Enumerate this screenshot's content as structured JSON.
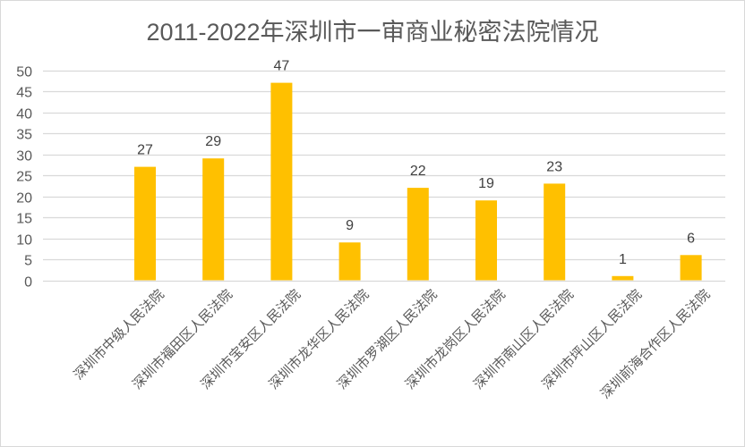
{
  "chart_data": {
    "type": "bar",
    "title": "2011-2022年深圳市一审商业秘密法院情况",
    "xlabel": "",
    "ylabel": "",
    "ylim": [
      0,
      50
    ],
    "yticks": [
      0,
      5,
      10,
      15,
      20,
      25,
      30,
      35,
      40,
      45,
      50
    ],
    "grid": true,
    "legend": null,
    "bar_color": "#FFC000",
    "categories": [
      "深圳市中级人民法院",
      "深圳市福田区人民法院",
      "深圳市宝安区人民法院",
      "深圳市龙华区人民法院",
      "深圳市罗湖区人民法院",
      "深圳市龙岗区人民法院",
      "深圳市南山区人民法院",
      "深圳市坪山区人民法院",
      "深圳前海合作区人民法院"
    ],
    "values": [
      27,
      29,
      47,
      9,
      22,
      19,
      23,
      1,
      6
    ],
    "data_labels": true
  }
}
